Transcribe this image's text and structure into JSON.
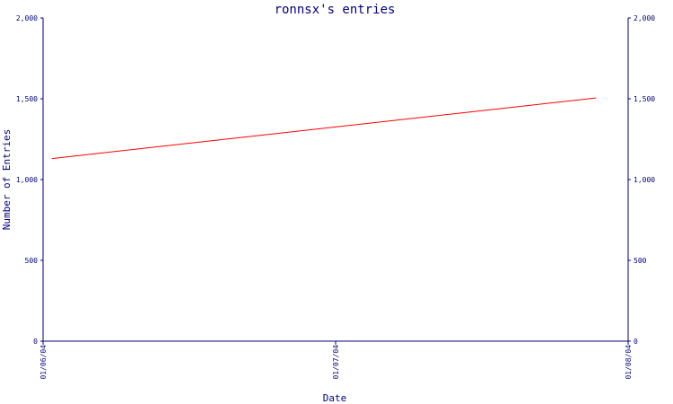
{
  "chart_data": {
    "type": "line",
    "title": "ronnsx's entries",
    "xlabel": "Date",
    "ylabel": "Number of Entries",
    "x_ticks": [
      "01/06/04",
      "01/07/04",
      "01/08/04"
    ],
    "y_ticks": [
      "0",
      "500",
      "1,000",
      "1,500",
      "2,000"
    ],
    "y_tick_values": [
      0,
      500,
      1000,
      1500,
      2000
    ],
    "ylim": [
      0,
      2000
    ],
    "xlim": [
      "01/06/04",
      "01/08/04"
    ],
    "grid": false,
    "series": [
      {
        "x": [
          "01/06/04",
          "01/08/04"
        ],
        "x_index": [
          0.03,
          1.89
        ],
        "values": [
          1130,
          1505
        ],
        "color": "#ff0000"
      }
    ]
  },
  "colors": {
    "axis": "#000080",
    "line": "#ff0000"
  }
}
